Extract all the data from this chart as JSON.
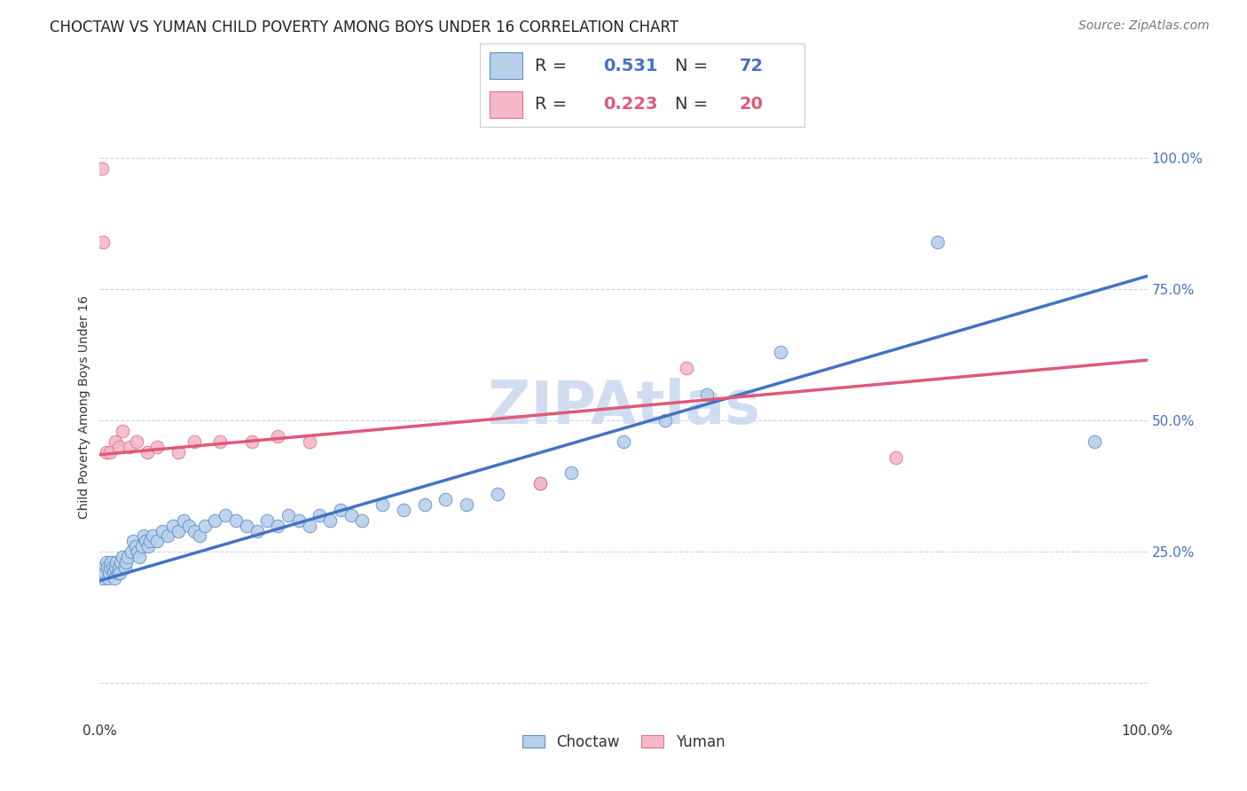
{
  "title": "CHOCTAW VS YUMAN CHILD POVERTY AMONG BOYS UNDER 16 CORRELATION CHART",
  "source": "Source: ZipAtlas.com",
  "ylabel": "Child Poverty Among Boys Under 16",
  "watermark": "ZIPAtlas",
  "choctaw_R": 0.531,
  "choctaw_N": 72,
  "yuman_R": 0.223,
  "yuman_N": 20,
  "choctaw_color": "#b8d0ea",
  "choctaw_edge_color": "#6090c8",
  "choctaw_line_color": "#4472c4",
  "yuman_color": "#f5b8c8",
  "yuman_edge_color": "#e07090",
  "yuman_line_color": "#e05878",
  "xlim": [
    0.0,
    1.0
  ],
  "ylim": [
    -0.07,
    1.12
  ],
  "choctaw_x": [
    0.003,
    0.004,
    0.005,
    0.006,
    0.007,
    0.008,
    0.009,
    0.01,
    0.011,
    0.012,
    0.013,
    0.014,
    0.015,
    0.016,
    0.017,
    0.018,
    0.019,
    0.02,
    0.022,
    0.024,
    0.025,
    0.027,
    0.03,
    0.032,
    0.034,
    0.036,
    0.038,
    0.04,
    0.042,
    0.044,
    0.046,
    0.048,
    0.05,
    0.055,
    0.06,
    0.065,
    0.07,
    0.075,
    0.08,
    0.085,
    0.09,
    0.095,
    0.1,
    0.11,
    0.12,
    0.13,
    0.14,
    0.15,
    0.16,
    0.17,
    0.18,
    0.19,
    0.2,
    0.21,
    0.22,
    0.23,
    0.24,
    0.25,
    0.27,
    0.29,
    0.31,
    0.33,
    0.35,
    0.38,
    0.42,
    0.45,
    0.5,
    0.54,
    0.58,
    0.65,
    0.8,
    0.95
  ],
  "choctaw_y": [
    0.2,
    0.22,
    0.21,
    0.23,
    0.22,
    0.2,
    0.21,
    0.22,
    0.23,
    0.22,
    0.21,
    0.2,
    0.22,
    0.23,
    0.21,
    0.22,
    0.21,
    0.23,
    0.24,
    0.22,
    0.23,
    0.24,
    0.25,
    0.27,
    0.26,
    0.25,
    0.24,
    0.26,
    0.28,
    0.27,
    0.26,
    0.27,
    0.28,
    0.27,
    0.29,
    0.28,
    0.3,
    0.29,
    0.31,
    0.3,
    0.29,
    0.28,
    0.3,
    0.31,
    0.32,
    0.31,
    0.3,
    0.29,
    0.31,
    0.3,
    0.32,
    0.31,
    0.3,
    0.32,
    0.31,
    0.33,
    0.32,
    0.31,
    0.34,
    0.33,
    0.34,
    0.35,
    0.34,
    0.36,
    0.38,
    0.4,
    0.46,
    0.5,
    0.55,
    0.63,
    0.84,
    0.46
  ],
  "yuman_x": [
    0.002,
    0.003,
    0.006,
    0.01,
    0.015,
    0.018,
    0.022,
    0.028,
    0.035,
    0.045,
    0.055,
    0.075,
    0.09,
    0.115,
    0.145,
    0.17,
    0.2,
    0.42,
    0.56,
    0.76
  ],
  "yuman_y": [
    0.98,
    0.84,
    0.44,
    0.44,
    0.46,
    0.45,
    0.48,
    0.45,
    0.46,
    0.44,
    0.45,
    0.44,
    0.46,
    0.46,
    0.46,
    0.47,
    0.46,
    0.38,
    0.6,
    0.43
  ],
  "choctaw_trend": [
    0.0,
    1.0,
    0.195,
    0.775
  ],
  "yuman_trend": [
    0.0,
    1.0,
    0.435,
    0.615
  ],
  "yticks_left": [
    0.0,
    0.25,
    0.5,
    0.75,
    1.0
  ],
  "ytick_left_labels": [
    "",
    "",
    "",
    "",
    ""
  ],
  "yticks_right": [
    0.25,
    0.5,
    0.75,
    1.0
  ],
  "ytick_right_labels": [
    "25.0%",
    "50.0%",
    "75.0%",
    "100.0%"
  ],
  "xticks": [
    0.0,
    0.25,
    0.5,
    0.75,
    1.0
  ],
  "xtick_labels": [
    "0.0%",
    "",
    "",
    "",
    "100.0%"
  ],
  "background_color": "#ffffff",
  "grid_color": "#c8d4e8",
  "title_fontsize": 12,
  "axis_label_fontsize": 10,
  "tick_fontsize": 11,
  "watermark_fontsize": 48,
  "watermark_color": "#d0ddf0",
  "source_fontsize": 10,
  "legend_color_blue": "#4472c4",
  "legend_color_pink": "#e05878",
  "legend_text_color": "#333333"
}
